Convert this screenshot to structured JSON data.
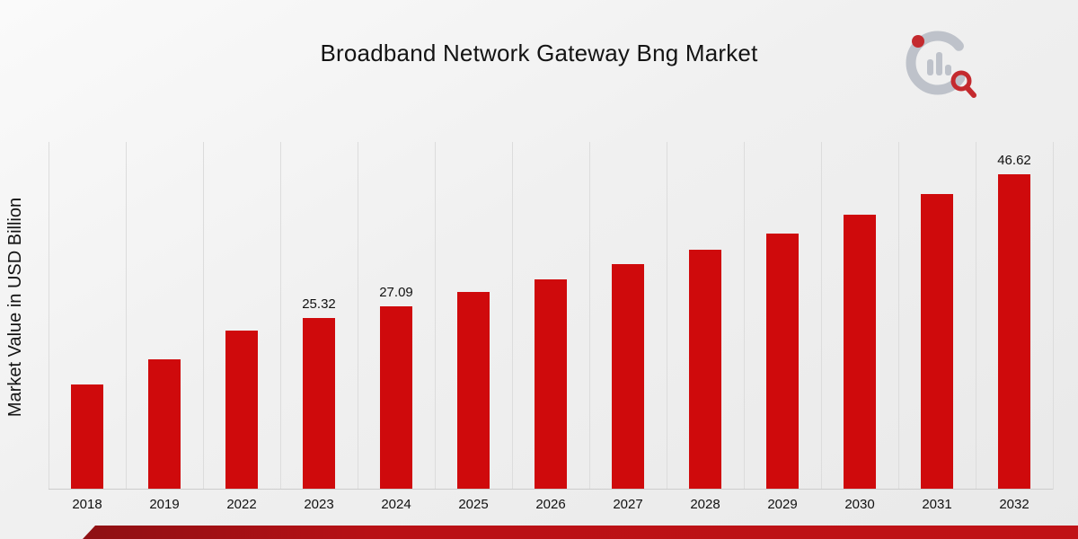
{
  "page": {
    "title": "Broadband Network Gateway Bng Market"
  },
  "chart_data": {
    "type": "bar",
    "title": "Broadband Network Gateway Bng Market",
    "xlabel": "",
    "ylabel": "Market Value in USD Billion",
    "categories": [
      "2018",
      "2019",
      "2022",
      "2023",
      "2024",
      "2025",
      "2026",
      "2027",
      "2028",
      "2029",
      "2030",
      "2031",
      "2032"
    ],
    "values": [
      15.4,
      19.2,
      23.4,
      25.32,
      27.09,
      29.2,
      31.0,
      33.3,
      35.4,
      37.9,
      40.7,
      43.7,
      46.62
    ],
    "data_labels": {
      "2023": "25.32",
      "2024": "27.09",
      "2032": "46.62"
    },
    "ylim": [
      0,
      51.6
    ],
    "grid": "vertical",
    "legend": "none",
    "bar_color": "#cf0a0c",
    "gridline_color": "#dcdcdc"
  },
  "branding": {
    "logo_name": "market-research-bar-magnifier-logo",
    "logo_gray": "#b9bec6",
    "logo_red": "#c0151a"
  },
  "footer": {
    "ribbon_color": "#b91116"
  }
}
